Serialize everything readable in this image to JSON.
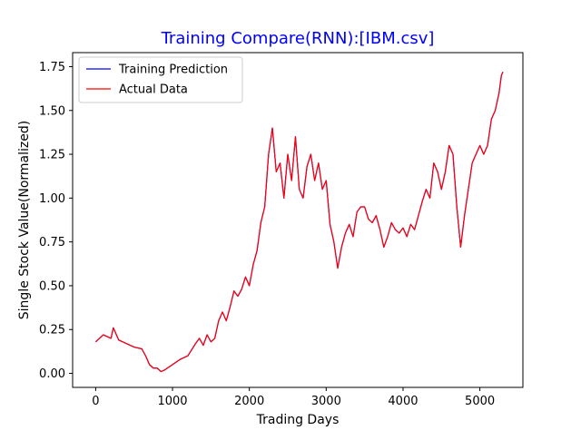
{
  "chart_data": {
    "type": "line",
    "title": "Training Compare(RNN):[IBM.csv]",
    "title_color": "#0000ff",
    "xlabel": "Trading Days",
    "ylabel": "Single Stock Value(Normalized)",
    "xlim": [
      -300,
      5560
    ],
    "ylim": [
      -0.08,
      1.83
    ],
    "xticks": [
      0,
      1000,
      2000,
      3000,
      4000,
      5000
    ],
    "xtick_labels": [
      "0",
      "1000",
      "2000",
      "3000",
      "4000",
      "5000"
    ],
    "yticks": [
      0.0,
      0.25,
      0.5,
      0.75,
      1.0,
      1.25,
      1.5,
      1.75
    ],
    "ytick_labels": [
      "0.00",
      "0.25",
      "0.50",
      "0.75",
      "1.00",
      "1.25",
      "1.50",
      "1.75"
    ],
    "grid": false,
    "legend_position": "top-left",
    "series": [
      {
        "name": "Training Prediction",
        "color": "#0000ff",
        "x": [
          0,
          100,
          200,
          230,
          300,
          400,
          500,
          600,
          650,
          700,
          750,
          800,
          850,
          900,
          1000,
          1100,
          1200,
          1300,
          1350,
          1400,
          1450,
          1500,
          1550,
          1600,
          1650,
          1700,
          1750,
          1800,
          1850,
          1900,
          1950,
          2000,
          2050,
          2100,
          2150,
          2200,
          2250,
          2300,
          2350,
          2400,
          2450,
          2500,
          2550,
          2600,
          2650,
          2700,
          2750,
          2800,
          2850,
          2900,
          2950,
          3000,
          3050,
          3100,
          3150,
          3200,
          3250,
          3300,
          3350,
          3400,
          3450,
          3500,
          3550,
          3600,
          3650,
          3700,
          3750,
          3800,
          3850,
          3900,
          3950,
          4000,
          4050,
          4100,
          4150,
          4200,
          4250,
          4300,
          4350,
          4400,
          4450,
          4500,
          4550,
          4600,
          4650,
          4700,
          4750,
          4800,
          4850,
          4900,
          4950,
          5000,
          5050,
          5100,
          5150,
          5200,
          5250,
          5280,
          5300
        ],
        "y": [
          0.18,
          0.22,
          0.2,
          0.26,
          0.19,
          0.17,
          0.15,
          0.14,
          0.1,
          0.05,
          0.03,
          0.03,
          0.01,
          0.02,
          0.05,
          0.08,
          0.1,
          0.17,
          0.2,
          0.16,
          0.22,
          0.18,
          0.2,
          0.3,
          0.35,
          0.3,
          0.38,
          0.47,
          0.44,
          0.48,
          0.55,
          0.5,
          0.62,
          0.7,
          0.86,
          0.95,
          1.25,
          1.4,
          1.15,
          1.2,
          1.0,
          1.25,
          1.1,
          1.35,
          1.05,
          1.0,
          1.18,
          1.25,
          1.1,
          1.2,
          1.05,
          1.1,
          0.85,
          0.75,
          0.6,
          0.72,
          0.8,
          0.85,
          0.78,
          0.92,
          0.95,
          0.95,
          0.88,
          0.86,
          0.9,
          0.82,
          0.72,
          0.78,
          0.86,
          0.82,
          0.8,
          0.83,
          0.78,
          0.85,
          0.82,
          0.9,
          0.98,
          1.05,
          1.0,
          1.2,
          1.15,
          1.05,
          1.15,
          1.3,
          1.25,
          0.95,
          0.72,
          0.9,
          1.05,
          1.2,
          1.25,
          1.3,
          1.25,
          1.3,
          1.45,
          1.5,
          1.6,
          1.7,
          1.72
        ]
      },
      {
        "name": "Actual Data",
        "color": "#ff0000",
        "x": [
          0,
          100,
          200,
          230,
          300,
          400,
          500,
          600,
          650,
          700,
          750,
          800,
          850,
          900,
          1000,
          1100,
          1200,
          1300,
          1350,
          1400,
          1450,
          1500,
          1550,
          1600,
          1650,
          1700,
          1750,
          1800,
          1850,
          1900,
          1950,
          2000,
          2050,
          2100,
          2150,
          2200,
          2250,
          2300,
          2350,
          2400,
          2450,
          2500,
          2550,
          2600,
          2650,
          2700,
          2750,
          2800,
          2850,
          2900,
          2950,
          3000,
          3050,
          3100,
          3150,
          3200,
          3250,
          3300,
          3350,
          3400,
          3450,
          3500,
          3550,
          3600,
          3650,
          3700,
          3750,
          3800,
          3850,
          3900,
          3950,
          4000,
          4050,
          4100,
          4150,
          4200,
          4250,
          4300,
          4350,
          4400,
          4450,
          4500,
          4550,
          4600,
          4650,
          4700,
          4750,
          4800,
          4850,
          4900,
          4950,
          5000,
          5050,
          5100,
          5150,
          5200,
          5250,
          5280,
          5300
        ],
        "y": [
          0.18,
          0.22,
          0.2,
          0.26,
          0.19,
          0.17,
          0.15,
          0.14,
          0.1,
          0.05,
          0.03,
          0.03,
          0.01,
          0.02,
          0.05,
          0.08,
          0.1,
          0.17,
          0.2,
          0.16,
          0.22,
          0.18,
          0.2,
          0.3,
          0.35,
          0.3,
          0.38,
          0.47,
          0.44,
          0.48,
          0.55,
          0.5,
          0.62,
          0.7,
          0.86,
          0.95,
          1.25,
          1.4,
          1.15,
          1.2,
          1.0,
          1.25,
          1.1,
          1.35,
          1.05,
          1.0,
          1.18,
          1.25,
          1.1,
          1.2,
          1.05,
          1.1,
          0.85,
          0.75,
          0.6,
          0.72,
          0.8,
          0.85,
          0.78,
          0.92,
          0.95,
          0.95,
          0.88,
          0.86,
          0.9,
          0.82,
          0.72,
          0.78,
          0.86,
          0.82,
          0.8,
          0.83,
          0.78,
          0.85,
          0.82,
          0.9,
          0.98,
          1.05,
          1.0,
          1.2,
          1.15,
          1.05,
          1.15,
          1.3,
          1.25,
          0.95,
          0.72,
          0.9,
          1.05,
          1.2,
          1.25,
          1.3,
          1.25,
          1.3,
          1.45,
          1.5,
          1.6,
          1.7,
          1.72
        ]
      }
    ]
  }
}
